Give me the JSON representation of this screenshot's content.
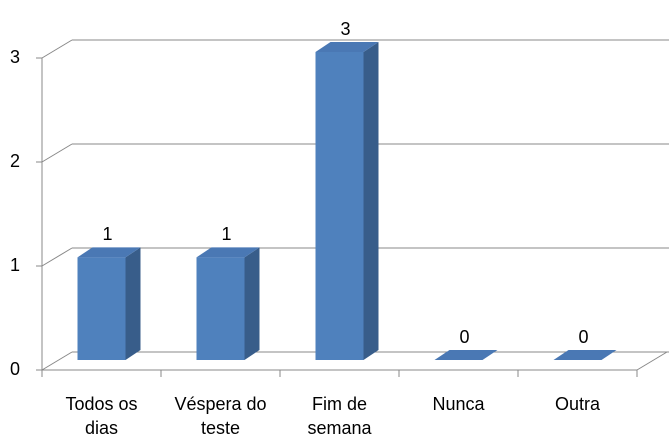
{
  "chart_data": {
    "type": "bar3d",
    "categories": [
      "Todos os dias",
      "Véspera do teste",
      "Fim de semana",
      "Nunca",
      "Outra"
    ],
    "values": [
      1,
      1,
      3,
      0,
      0
    ],
    "color": "#4f81bd",
    "ylim": [
      0,
      3
    ],
    "yticks": [
      0,
      1,
      2,
      3
    ],
    "grid": true,
    "data_labels": true
  }
}
